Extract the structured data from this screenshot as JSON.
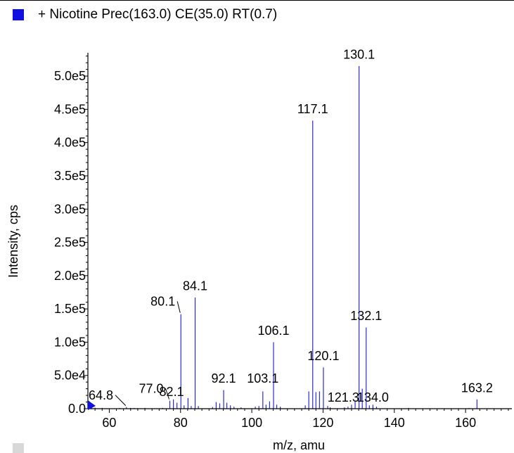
{
  "legend": {
    "label": "+ Nicotine Prec(163.0) CE(35.0) RT(0.7)",
    "color": "#1010e0"
  },
  "chart_data": {
    "type": "bar",
    "xlabel": "m/z, amu",
    "ylabel": "Intensity, cps",
    "xlim": [
      54,
      173
    ],
    "ylim": [
      0,
      535000
    ],
    "x_ticks": [
      60,
      80,
      100,
      120,
      140,
      160
    ],
    "y_ticks": [
      {
        "v": 0,
        "label": "0.0"
      },
      {
        "v": 50000,
        "label": "5.0e4"
      },
      {
        "v": 100000,
        "label": "1.0e5"
      },
      {
        "v": 150000,
        "label": "1.5e5"
      },
      {
        "v": 200000,
        "label": "2.0e5"
      },
      {
        "v": 250000,
        "label": "2.5e5"
      },
      {
        "v": 300000,
        "label": "3.0e5"
      },
      {
        "v": 350000,
        "label": "3.5e5"
      },
      {
        "v": 400000,
        "label": "4.0e5"
      },
      {
        "v": 450000,
        "label": "4.5e5"
      },
      {
        "v": 500000,
        "label": "5.0e5"
      }
    ],
    "series_color": "#2b2bd6",
    "peaks": [
      {
        "mz": 54.5,
        "i": 8000
      },
      {
        "mz": 55.0,
        "i": 3000
      },
      {
        "mz": 56.0,
        "i": 1500
      },
      {
        "mz": 58.0,
        "i": 1200
      },
      {
        "mz": 63.0,
        "i": 1000
      },
      {
        "mz": 64.8,
        "i": 2500
      },
      {
        "mz": 66.0,
        "i": 1200
      },
      {
        "mz": 67.0,
        "i": 1000
      },
      {
        "mz": 68.0,
        "i": 800
      },
      {
        "mz": 70.0,
        "i": 1200
      },
      {
        "mz": 75.0,
        "i": 1200
      },
      {
        "mz": 77.0,
        "i": 12000
      },
      {
        "mz": 78.0,
        "i": 14000
      },
      {
        "mz": 79.0,
        "i": 9000
      },
      {
        "mz": 80.1,
        "i": 142000
      },
      {
        "mz": 81.0,
        "i": 5000
      },
      {
        "mz": 82.1,
        "i": 16000
      },
      {
        "mz": 83.0,
        "i": 4000
      },
      {
        "mz": 84.1,
        "i": 167000
      },
      {
        "mz": 85.0,
        "i": 4000
      },
      {
        "mz": 89.0,
        "i": 2500
      },
      {
        "mz": 90.0,
        "i": 10000
      },
      {
        "mz": 91.0,
        "i": 8000
      },
      {
        "mz": 92.1,
        "i": 28000
      },
      {
        "mz": 93.0,
        "i": 9000
      },
      {
        "mz": 94.0,
        "i": 5000
      },
      {
        "mz": 95.0,
        "i": 3000
      },
      {
        "mz": 97.0,
        "i": 2000
      },
      {
        "mz": 101.0,
        "i": 3000
      },
      {
        "mz": 102.0,
        "i": 4000
      },
      {
        "mz": 103.1,
        "i": 26000
      },
      {
        "mz": 104.0,
        "i": 6000
      },
      {
        "mz": 105.0,
        "i": 11000
      },
      {
        "mz": 106.1,
        "i": 100000
      },
      {
        "mz": 107.0,
        "i": 6000
      },
      {
        "mz": 108.0,
        "i": 3000
      },
      {
        "mz": 115.0,
        "i": 5000
      },
      {
        "mz": 116.0,
        "i": 26000
      },
      {
        "mz": 117.1,
        "i": 433000
      },
      {
        "mz": 118.0,
        "i": 25000
      },
      {
        "mz": 119.0,
        "i": 26000
      },
      {
        "mz": 120.1,
        "i": 62000
      },
      {
        "mz": 121.3,
        "i": 4000
      },
      {
        "mz": 122.0,
        "i": 2000
      },
      {
        "mz": 126.0,
        "i": 2000
      },
      {
        "mz": 127.0,
        "i": 3000
      },
      {
        "mz": 128.0,
        "i": 6000
      },
      {
        "mz": 129.0,
        "i": 12000
      },
      {
        "mz": 130.1,
        "i": 515000
      },
      {
        "mz": 131.0,
        "i": 30000
      },
      {
        "mz": 132.1,
        "i": 122000
      },
      {
        "mz": 133.0,
        "i": 5000
      },
      {
        "mz": 134.0,
        "i": 6000
      },
      {
        "mz": 135.0,
        "i": 3000
      },
      {
        "mz": 144.0,
        "i": 1200
      },
      {
        "mz": 161.0,
        "i": 1000
      },
      {
        "mz": 163.2,
        "i": 14000
      }
    ],
    "peak_labels": [
      {
        "text": "64.8",
        "mz": 64.8,
        "i": 2500,
        "lx": 54.2,
        "ly": 14000,
        "leader": true
      },
      {
        "text": "77.0",
        "mz": 77.0,
        "i": 12000,
        "lx": 68.3,
        "ly": 24000,
        "leader": true
      },
      {
        "text": "80.1",
        "mz": 80.1,
        "i": 142000,
        "lx": 71.6,
        "ly": 155000,
        "leader": true
      },
      {
        "text": "82.1",
        "mz": 82.1,
        "i": 16000,
        "lx": 77.5,
        "ly": 19000,
        "leader": false
      },
      {
        "text": "84.1",
        "mz": 84.1,
        "i": 167000,
        "lx": 84.1,
        "ly": 178000,
        "leader": false
      },
      {
        "text": "92.1",
        "mz": 92.1,
        "i": 28000,
        "lx": 92.1,
        "ly": 39000,
        "leader": false
      },
      {
        "text": "103.1",
        "mz": 103.1,
        "i": 26000,
        "lx": 103.1,
        "ly": 39000,
        "leader": false
      },
      {
        "text": "106.1",
        "mz": 106.1,
        "i": 100000,
        "lx": 106.1,
        "ly": 111000,
        "leader": false
      },
      {
        "text": "117.1",
        "mz": 117.1,
        "i": 433000,
        "lx": 117.1,
        "ly": 444000,
        "leader": false
      },
      {
        "text": "120.1",
        "mz": 120.1,
        "i": 62000,
        "lx": 120.1,
        "ly": 73000,
        "leader": false
      },
      {
        "text": "121.3",
        "mz": 121.3,
        "i": 4000,
        "lx": 125.7,
        "ly": 10500,
        "leader": false
      },
      {
        "text": "130.1",
        "mz": 130.1,
        "i": 515000,
        "lx": 130.1,
        "ly": 526000,
        "leader": false
      },
      {
        "text": "132.1",
        "mz": 132.1,
        "i": 122000,
        "lx": 132.1,
        "ly": 133000,
        "leader": false
      },
      {
        "text": "134.0",
        "mz": 134.0,
        "i": 6000,
        "lx": 134.0,
        "ly": 10500,
        "leader": false
      },
      {
        "text": "163.2",
        "mz": 163.2,
        "i": 14000,
        "lx": 163.2,
        "ly": 25000,
        "leader": false
      }
    ]
  }
}
